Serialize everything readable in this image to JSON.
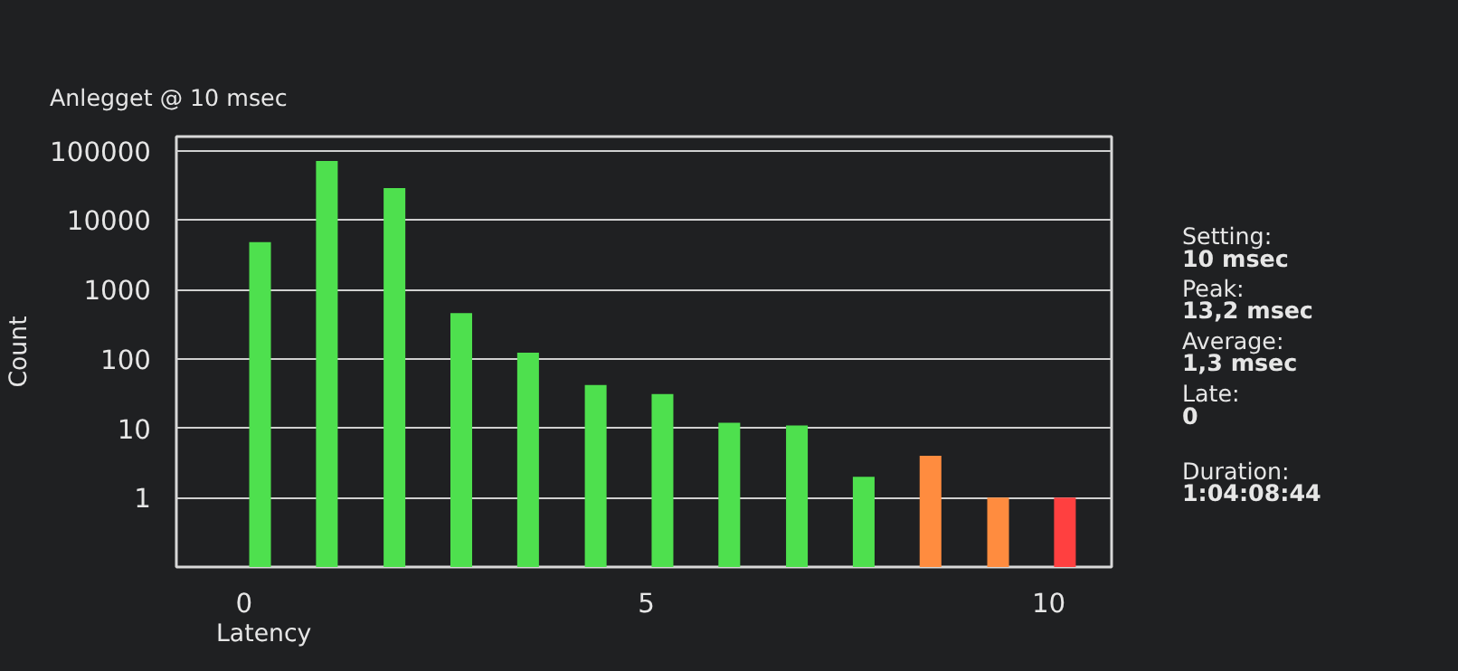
{
  "chart_data": {
    "type": "bar",
    "title": "Anlegget @ 10 msec",
    "xlabel": "Latency",
    "ylabel": "Count",
    "x": [
      0.2,
      1.03,
      1.87,
      2.7,
      3.53,
      4.37,
      5.2,
      6.03,
      6.87,
      7.7,
      8.53,
      9.37,
      10.2
    ],
    "values": [
      4800,
      71000,
      29000,
      455,
      123,
      42,
      31,
      12,
      11,
      2,
      4,
      1,
      1
    ],
    "colors": [
      "#4ee04e",
      "#4ee04e",
      "#4ee04e",
      "#4ee04e",
      "#4ee04e",
      "#4ee04e",
      "#4ee04e",
      "#4ee04e",
      "#4ee04e",
      "#4ee04e",
      "#ff8c3f",
      "#ff8c3f",
      "#ff4040"
    ],
    "log": "y",
    "xlim": [
      -0.84,
      10.78
    ],
    "ylim": [
      0.1,
      160000
    ],
    "xticks": [
      0,
      5,
      10
    ],
    "yticks": [
      1,
      10,
      100,
      1000,
      10000,
      100000
    ],
    "grid": "y",
    "annotations": [
      "Setting:",
      "10 msec",
      "Peak:",
      "13,2 msec",
      "Average:",
      "1,3 msec",
      "Late:",
      "0",
      "Duration:",
      "1:04:08:44"
    ]
  }
}
